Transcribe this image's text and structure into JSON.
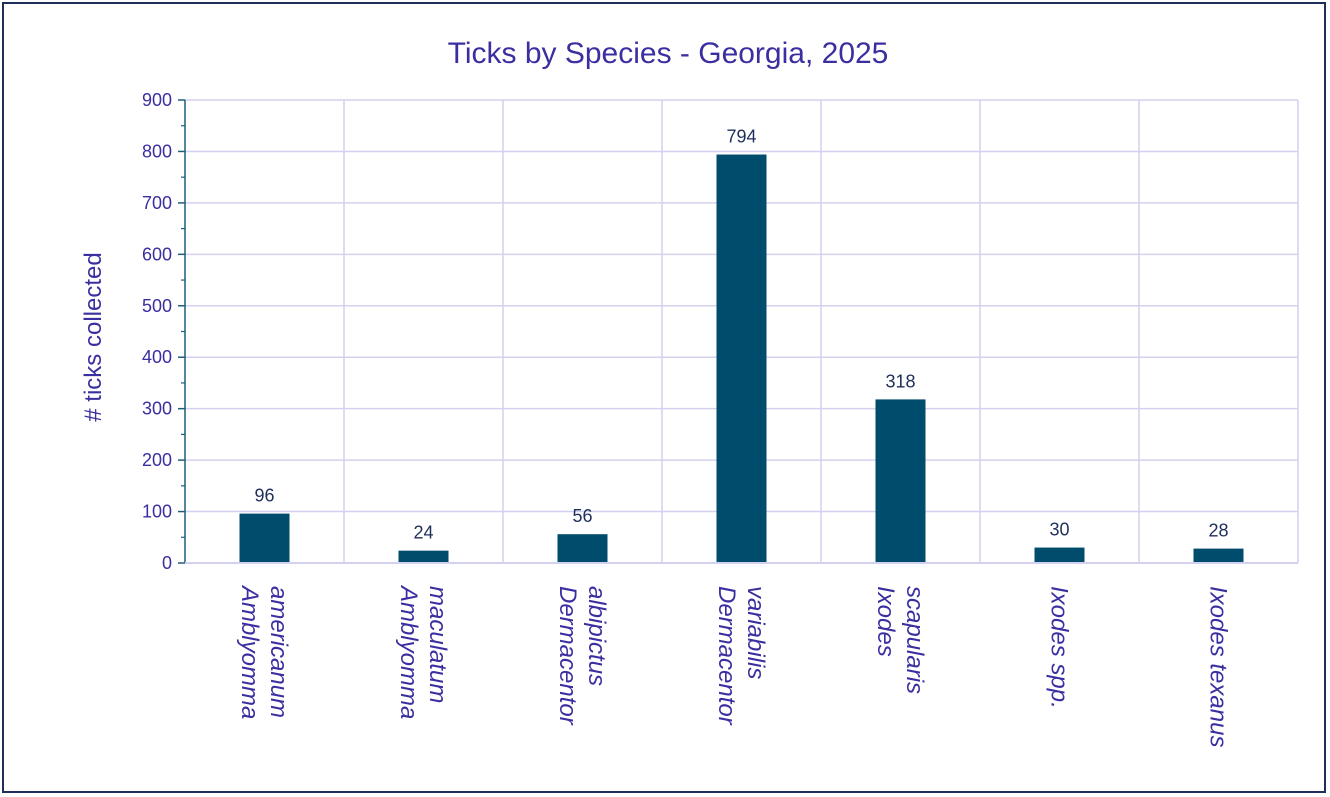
{
  "chart_data": {
    "type": "bar",
    "title": "Ticks by Species - Georgia, 2025",
    "xlabel": "",
    "ylabel": "# ticks collected",
    "ylim": [
      0,
      900
    ],
    "yticks": [
      0,
      100,
      200,
      300,
      400,
      500,
      600,
      700,
      800,
      900
    ],
    "categories": [
      [
        "Amblyomma",
        "americanum"
      ],
      [
        "Amblyomma",
        "maculatum"
      ],
      [
        "Dermacentor",
        "albipictus"
      ],
      [
        "Dermacentor",
        "variabilis"
      ],
      [
        "Ixodes",
        "scapularis"
      ],
      [
        "Ixodes spp."
      ],
      [
        "Ixodes texanus"
      ]
    ],
    "values": [
      96,
      24,
      56,
      794,
      318,
      30,
      28
    ],
    "grid": true,
    "bar_color": "#004c6d",
    "grid_color": "#d4d0ef",
    "text_color": "#3a2fa0"
  }
}
